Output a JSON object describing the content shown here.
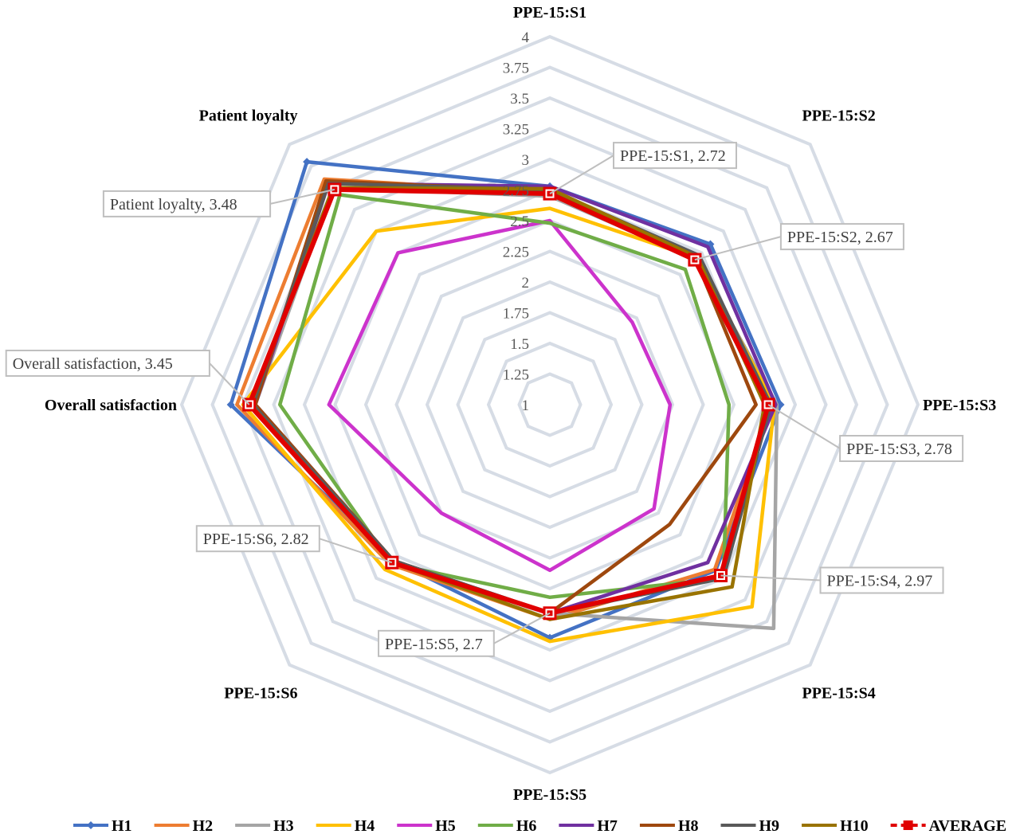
{
  "chart_data": {
    "type": "radar",
    "axes": [
      "PPE-15:S1",
      "PPE-15:S2",
      "PPE-15:S3",
      "PPE-15:S4",
      "PPE-15:S5",
      "PPE-15:S6",
      "Overall satisfaction",
      "Patient loyalty"
    ],
    "rlim": [
      1,
      4
    ],
    "ticks": [
      "1",
      "1.25",
      "1.5",
      "1.75",
      "2",
      "2.25",
      "2.5",
      "2.75",
      "3",
      "3.25",
      "3.5",
      "3.75",
      "4"
    ],
    "grid": true,
    "legend_position": "bottom",
    "series": [
      {
        "name": "H1",
        "color": "#4472C4",
        "values": [
          2.78,
          2.85,
          2.88,
          2.91,
          2.9,
          2.8,
          3.6,
          3.8
        ]
      },
      {
        "name": "H2",
        "color": "#ED7D31",
        "values": [
          2.73,
          2.7,
          2.8,
          2.9,
          2.75,
          2.84,
          3.55,
          3.6
        ]
      },
      {
        "name": "H3",
        "color": "#A5A5A5",
        "values": [
          2.7,
          2.68,
          2.85,
          3.58,
          2.7,
          2.8,
          3.4,
          3.5
        ]
      },
      {
        "name": "H4",
        "color": "#FFC000",
        "values": [
          2.6,
          2.69,
          2.83,
          3.33,
          2.93,
          2.9,
          3.5,
          3.0
        ]
      },
      {
        "name": "H5",
        "color": "#CC33CC",
        "values": [
          2.5,
          1.95,
          1.98,
          2.2,
          2.35,
          2.25,
          2.8,
          2.75
        ]
      },
      {
        "name": "H6",
        "color": "#70AD47",
        "values": [
          2.48,
          2.56,
          2.46,
          3.0,
          2.57,
          2.83,
          3.2,
          3.42
        ]
      },
      {
        "name": "H7",
        "color": "#7030A0",
        "values": [
          2.78,
          2.82,
          2.84,
          2.82,
          2.7,
          2.8,
          3.4,
          3.55
        ]
      },
      {
        "name": "H8",
        "color": "#9E480E",
        "values": [
          2.74,
          2.68,
          2.68,
          2.38,
          2.7,
          2.8,
          3.4,
          3.58
        ]
      },
      {
        "name": "H9",
        "color": "#595959",
        "values": [
          2.75,
          2.72,
          2.8,
          3.0,
          2.7,
          2.8,
          3.42,
          3.55
        ]
      },
      {
        "name": "H10",
        "color": "#997300",
        "values": [
          2.76,
          2.7,
          2.75,
          3.1,
          2.75,
          2.82,
          3.44,
          3.5
        ]
      },
      {
        "name": "AVERAGE",
        "color": "#E00000",
        "dashed": true,
        "values": [
          2.72,
          2.67,
          2.78,
          2.97,
          2.7,
          2.82,
          3.45,
          3.48
        ]
      }
    ],
    "annotations": [
      {
        "axis": 0,
        "text": "PPE-15:S1, 2.72"
      },
      {
        "axis": 1,
        "text": "PPE-15:S2, 2.67"
      },
      {
        "axis": 2,
        "text": "PPE-15:S3, 2.78"
      },
      {
        "axis": 3,
        "text": "PPE-15:S4, 2.97"
      },
      {
        "axis": 4,
        "text": "PPE-15:S5, 2.7"
      },
      {
        "axis": 5,
        "text": "PPE-15:S6, 2.82"
      },
      {
        "axis": 6,
        "text": "Overall satisfaction, 3.45"
      },
      {
        "axis": 7,
        "text": "Patient loyalty, 3.48"
      }
    ]
  }
}
